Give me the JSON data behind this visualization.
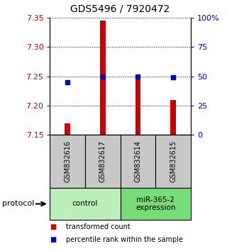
{
  "title": "GDS5496 / 7920472",
  "samples": [
    "GSM832616",
    "GSM832617",
    "GSM832614",
    "GSM832615"
  ],
  "red_values": [
    7.17,
    7.345,
    7.252,
    7.21
  ],
  "blue_values": [
    7.24,
    7.25,
    7.25,
    7.248
  ],
  "baseline": 7.15,
  "ylim_left": [
    7.15,
    7.35
  ],
  "ylim_right": [
    0,
    100
  ],
  "left_ticks": [
    7.15,
    7.2,
    7.25,
    7.3,
    7.35
  ],
  "right_ticks": [
    0,
    25,
    50,
    75,
    100
  ],
  "right_tick_labels": [
    "0",
    "25",
    "50",
    "75",
    "100%"
  ],
  "groups": [
    {
      "label": "control",
      "color": "#bbf0bb",
      "samples": [
        0,
        1
      ]
    },
    {
      "label": "miR-365-2\nexpression",
      "color": "#77dd77",
      "samples": [
        2,
        3
      ]
    }
  ],
  "bar_color": "#cc0000",
  "point_color": "#0000cc",
  "bar_width": 0.15,
  "sample_box_color": "#c8c8c8",
  "legend_red_label": "transformed count",
  "legend_blue_label": "percentile rank within the sample",
  "protocol_label": "protocol",
  "bg_color": "#ffffff"
}
